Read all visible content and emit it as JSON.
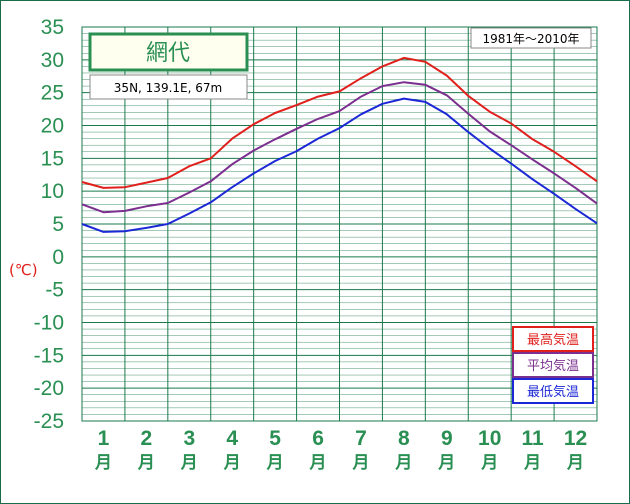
{
  "chart_data": {
    "type": "line",
    "title": "網代",
    "location": "35N,  139.1E,  67m",
    "period": "1981年〜2010年",
    "ylabel": "(℃)",
    "ylim": [
      -25,
      35
    ],
    "yticks": [
      "35",
      "30",
      "25",
      "20",
      "15",
      "10",
      "5",
      "0",
      "-5",
      "-10",
      "-15",
      "-20",
      "-25"
    ],
    "categories": [
      "1",
      "2",
      "3",
      "4",
      "5",
      "6",
      "7",
      "8",
      "9",
      "10",
      "11",
      "12"
    ],
    "month_unit": "月",
    "grid": true,
    "legend_position": "bottom-right",
    "x": [
      0,
      0.5,
      1,
      1.5,
      2,
      2.5,
      3,
      3.5,
      4,
      4.5,
      5,
      5.5,
      6,
      6.5,
      7,
      7.5,
      8,
      8.5,
      9,
      9.5,
      10,
      10.5,
      11,
      11.5,
      12
    ],
    "series": [
      {
        "name": "最高気温",
        "color": "#e0201c",
        "values": [
          11.4,
          10.5,
          10.6,
          11.3,
          12.0,
          13.8,
          15.0,
          18.0,
          20.2,
          21.9,
          23.1,
          24.4,
          25.2,
          27.2,
          29.0,
          30.3,
          29.7,
          27.6,
          24.5,
          22.1,
          20.3,
          17.9,
          16.0,
          13.8,
          11.5
        ]
      },
      {
        "name": "平均気温",
        "color": "#7b2f8e",
        "values": [
          8.0,
          6.8,
          7.0,
          7.7,
          8.2,
          9.8,
          11.5,
          14.1,
          16.2,
          17.9,
          19.5,
          21.0,
          22.2,
          24.4,
          26.0,
          26.6,
          26.2,
          24.6,
          21.8,
          19.1,
          17.0,
          14.8,
          12.7,
          10.5,
          8.1
        ]
      },
      {
        "name": "最低気温",
        "color": "#1c28d6",
        "values": [
          5.0,
          3.8,
          3.9,
          4.4,
          5.0,
          6.6,
          8.3,
          10.6,
          12.7,
          14.6,
          16.1,
          18.0,
          19.6,
          21.7,
          23.3,
          24.1,
          23.6,
          21.7,
          19.0,
          16.5,
          14.2,
          11.8,
          9.6,
          7.3,
          5.1
        ]
      }
    ]
  }
}
